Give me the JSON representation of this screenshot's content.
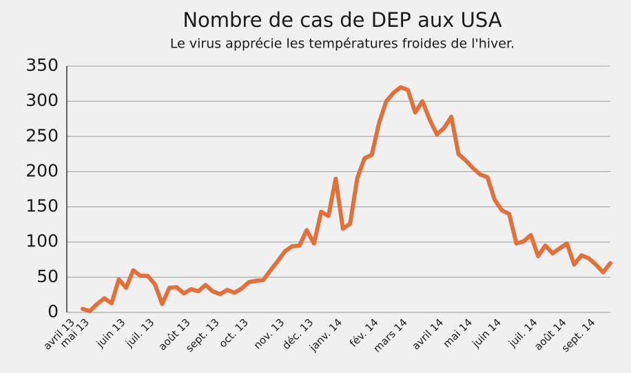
{
  "chart_data": {
    "type": "line",
    "title": "Nombre de cas de DEP aux USA",
    "subtitle": "Le virus apprécie les températures froides de l'hiver.",
    "categories": [
      "avril 13",
      null,
      "mai 13",
      null,
      null,
      null,
      null,
      "juin 13",
      null,
      null,
      null,
      "juil. 13",
      null,
      null,
      null,
      null,
      "août 13",
      null,
      null,
      null,
      "sept. 13",
      null,
      null,
      null,
      "oct. 13",
      null,
      null,
      null,
      null,
      "nov. 13",
      null,
      null,
      null,
      "déc. 13",
      null,
      null,
      null,
      "janv. 14",
      null,
      null,
      null,
      null,
      "fév. 14",
      null,
      null,
      null,
      "mars 14",
      null,
      null,
      null,
      null,
      "avril 14",
      null,
      null,
      null,
      "mai 14",
      null,
      null,
      null,
      "juin 14",
      null,
      null,
      null,
      null,
      "juil. 14",
      null,
      null,
      null,
      "août 14",
      null,
      null,
      null,
      "sept. 14",
      null
    ],
    "series": [
      {
        "name": "Cas de DEP",
        "color": "#e2703a",
        "values": [
          5,
          2,
          12,
          20,
          13,
          47,
          35,
          60,
          52,
          52,
          40,
          12,
          35,
          36,
          27,
          33,
          30,
          39,
          30,
          26,
          32,
          28,
          34,
          43,
          45,
          46,
          60,
          73,
          87,
          94,
          95,
          117,
          98,
          143,
          137,
          190,
          119,
          126,
          191,
          219,
          224,
          269,
          300,
          312,
          320,
          316,
          284,
          300,
          274,
          253,
          262,
          278,
          225,
          216,
          205,
          196,
          192,
          160,
          145,
          140,
          98,
          101,
          110,
          80,
          95,
          84,
          91,
          98,
          68,
          81,
          77,
          68,
          57,
          70
        ]
      }
    ],
    "ylim": [
      0,
      350
    ],
    "yticks": [
      0,
      50,
      100,
      150,
      200,
      250,
      300,
      350
    ],
    "grid": true
  }
}
